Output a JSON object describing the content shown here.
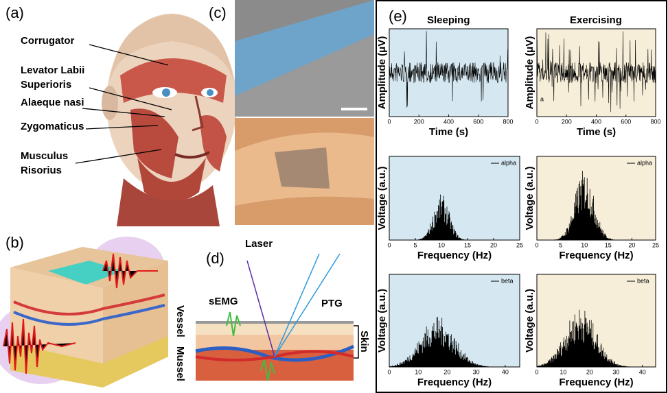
{
  "panels": {
    "a": {
      "label": "(a)",
      "annotations": [
        [
          "Corrugator"
        ],
        [
          "Levator Labii",
          "Superioris"
        ],
        [
          "Alaeque nasi"
        ],
        [
          "Zygomaticus"
        ],
        [
          "Musculus",
          "Risorius"
        ]
      ]
    },
    "b": {
      "label": "(b)"
    },
    "c": {
      "label": "(c)"
    },
    "d": {
      "label": "(d)",
      "labels": {
        "laser": "Laser",
        "semg": "sEMG",
        "ptg": "PTG",
        "vessel": "Vessel",
        "mussel": "Mussel",
        "skin": "Skin"
      }
    },
    "e": {
      "label": "(e)",
      "columns": [
        "Sleeping",
        "Exercising"
      ],
      "charts": [
        {
          "kind": "time",
          "background": "#d5e8f1",
          "ylabel": "Amplitude (μV)",
          "xlabel": "Time (s)",
          "xlim": [
            0,
            800
          ],
          "xticks": [
            0,
            200,
            400,
            600,
            800
          ]
        },
        {
          "kind": "time",
          "background": "#f6eed8",
          "ylabel": "Amplitude (μV)",
          "xlabel": "Time (s)",
          "xlim": [
            0,
            800
          ],
          "xticks": [
            0,
            200,
            400,
            600,
            800
          ],
          "annotation": "a"
        },
        {
          "kind": "spectrum",
          "background": "#d5e8f1",
          "ylabel": "Voltage (a.u.)",
          "xlabel": "Frequency (Hz)",
          "xlim": [
            0,
            25
          ],
          "xticks": [
            0,
            5,
            10,
            15,
            20,
            25
          ],
          "legend": "alpha"
        },
        {
          "kind": "spectrum",
          "background": "#f6eed8",
          "ylabel": "Voltage (a.u.)",
          "xlabel": "Frequency (Hz)",
          "xlim": [
            0,
            25
          ],
          "xticks": [
            0,
            5,
            10,
            15,
            20,
            25
          ],
          "legend": "alpha"
        },
        {
          "kind": "spectrum",
          "background": "#d5e8f1",
          "ylabel": "Voltage (a.u.)",
          "xlabel": "Frequency (Hz)",
          "xlim": [
            0,
            45
          ],
          "xticks": [
            0,
            10,
            20,
            30,
            40
          ],
          "legend": "beta"
        },
        {
          "kind": "spectrum",
          "background": "#f6eed8",
          "ylabel": "Voltage (a.u.)",
          "xlabel": "Frequency (Hz)",
          "xlim": [
            0,
            45
          ],
          "xticks": [
            0,
            10,
            20,
            30,
            40
          ],
          "legend": "beta"
        }
      ]
    }
  }
}
